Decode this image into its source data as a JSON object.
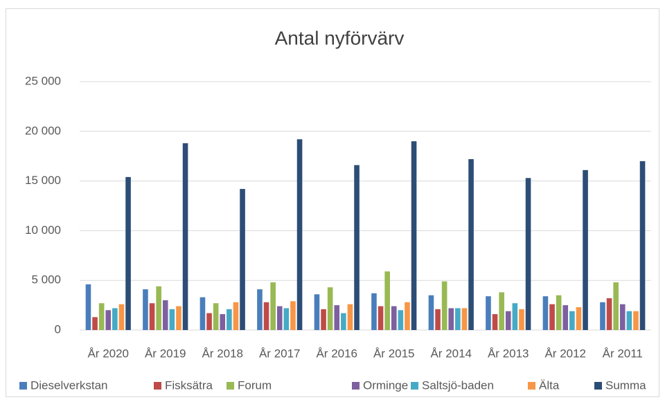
{
  "chart_data": {
    "type": "bar",
    "title": "Antal nyförvärv",
    "categories": [
      "År 2020",
      "År 2019",
      "År 2018",
      "År 2017",
      "År 2016",
      "År 2015",
      "År 2014",
      "År 2013",
      "År 2012",
      "År 2011"
    ],
    "series": [
      {
        "name": "Dieselverkstan",
        "color": "#4a7ebb",
        "values": [
          4600,
          4100,
          3300,
          4100,
          3600,
          3700,
          3500,
          3400,
          3400,
          2800
        ]
      },
      {
        "name": "Fisksätra",
        "color": "#be4b48",
        "values": [
          1300,
          2700,
          1700,
          2800,
          2100,
          2400,
          2100,
          1600,
          2600,
          3200
        ]
      },
      {
        "name": "Forum",
        "color": "#98b954",
        "values": [
          2700,
          4400,
          2700,
          4800,
          4300,
          5900,
          4900,
          3800,
          3500,
          4800
        ]
      },
      {
        "name": "Orminge",
        "color": "#7d60a0",
        "values": [
          2000,
          3000,
          1600,
          2400,
          2500,
          2400,
          2200,
          1900,
          2500,
          2600
        ]
      },
      {
        "name": "Saltsjö-baden",
        "color": "#46aac5",
        "values": [
          2200,
          2100,
          2100,
          2200,
          1700,
          2000,
          2200,
          2700,
          1900,
          1900
        ]
      },
      {
        "name": "Älta",
        "color": "#f79646",
        "values": [
          2600,
          2400,
          2800,
          2900,
          2600,
          2800,
          2200,
          2100,
          2300,
          1900
        ]
      },
      {
        "name": "Summa",
        "color": "#2c4d75",
        "values": [
          15400,
          18800,
          14200,
          19200,
          16600,
          19000,
          17200,
          15300,
          16100,
          17000
        ]
      }
    ],
    "ylim": [
      0,
      25000
    ],
    "yticks": [
      0,
      {
        "value": 5000,
        "label": "5 000"
      },
      {
        "value": 10000,
        "label": "10 000"
      },
      {
        "value": 15000,
        "label": "15 000"
      },
      {
        "value": 20000,
        "label": "20 000"
      },
      {
        "value": 25000,
        "label": "25 000"
      }
    ],
    "grid": true,
    "legend": "bottom"
  }
}
